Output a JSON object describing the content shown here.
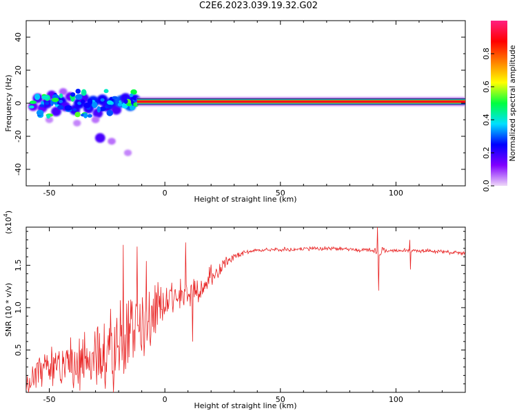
{
  "title": "C2E6.2023.039.19.32.G02",
  "chart_data": [
    {
      "type": "heatmap",
      "xlabel": "Height of straight line (km)",
      "ylabel": "Frequency (Hz)",
      "xlim": [
        -60,
        130
      ],
      "ylim": [
        -50,
        50
      ],
      "x_ticks": [
        "-50",
        "0",
        "50",
        "100"
      ],
      "y_ticks": [
        "-40",
        "-20",
        "0",
        "20",
        "40"
      ],
      "colorbar": {
        "label": "Normalized spectral amplitude",
        "range": [
          0,
          1
        ],
        "ticks": [
          "0.0",
          "0.2",
          "0.4",
          "0.6",
          "0.8"
        ],
        "colors": [
          "#eed8f8",
          "#8000ff",
          "#0000ff",
          "#00e0ff",
          "#00ff40",
          "#ffff00",
          "#ff8000",
          "#ff0000",
          "#ff2080"
        ]
      },
      "signal_band": {
        "x": [
          -12,
          130
        ],
        "freq": [
          0,
          2
        ]
      },
      "blobs": [
        {
          "x": -57,
          "f": -2,
          "v": 0.25
        },
        {
          "x": -55,
          "f": 3,
          "v": 0.3
        },
        {
          "x": -53,
          "f": -3,
          "v": 0.25
        },
        {
          "x": -51,
          "f": 0,
          "v": 0.35
        },
        {
          "x": -49,
          "f": 5,
          "v": 0.25
        },
        {
          "x": -47,
          "f": -5,
          "v": 0.3
        },
        {
          "x": -45,
          "f": 1,
          "v": 0.4
        },
        {
          "x": -43,
          "f": -2,
          "v": 0.3
        },
        {
          "x": -41,
          "f": 4,
          "v": 0.25
        },
        {
          "x": -39,
          "f": -4,
          "v": 0.35
        },
        {
          "x": -37,
          "f": 0,
          "v": 0.4
        },
        {
          "x": -35,
          "f": 3,
          "v": 0.3
        },
        {
          "x": -33,
          "f": -3,
          "v": 0.35
        },
        {
          "x": -31,
          "f": 1,
          "v": 0.45
        },
        {
          "x": -29,
          "f": -6,
          "v": 0.3
        },
        {
          "x": -27,
          "f": 2,
          "v": 0.4
        },
        {
          "x": -25,
          "f": -2,
          "v": 0.35
        },
        {
          "x": -23,
          "f": 0,
          "v": 0.45
        },
        {
          "x": -21,
          "f": -4,
          "v": 0.3
        },
        {
          "x": -19,
          "f": 1,
          "v": 0.5
        },
        {
          "x": -17,
          "f": 3,
          "v": 0.35
        },
        {
          "x": -15,
          "f": -1,
          "v": 0.5
        },
        {
          "x": -13,
          "f": 2,
          "v": 0.4
        },
        {
          "x": -28,
          "f": -21,
          "v": 0.3
        },
        {
          "x": -23,
          "f": -23,
          "v": 0.1
        },
        {
          "x": -16,
          "f": -30,
          "v": 0.08
        },
        {
          "x": -38,
          "f": -12,
          "v": 0.08
        },
        {
          "x": -30,
          "f": -10,
          "v": 0.1
        },
        {
          "x": -44,
          "f": 7,
          "v": 0.12
        },
        {
          "x": -50,
          "f": -10,
          "v": 0.08
        }
      ]
    },
    {
      "type": "line",
      "xlabel": "Height of straight line (km)",
      "ylabel": "SNR (10 * v/v)",
      "y_multiplier": "(x10",
      "y_multiplier_exp": "4",
      "xlim": [
        -60,
        130
      ],
      "ylim": [
        0.0,
        1.95
      ],
      "x_ticks": [
        "-50",
        "0",
        "50",
        "100"
      ],
      "y_ticks": [
        "0.5",
        "1.0",
        "1.5"
      ],
      "color": "#e82020",
      "x": [
        -60,
        -55,
        -50,
        -45,
        -40,
        -35,
        -30,
        -25,
        -20,
        -15,
        -10,
        -5,
        0,
        5,
        10,
        15,
        20,
        25,
        30,
        35,
        40,
        50,
        60,
        70,
        80,
        85,
        90,
        92,
        95,
        100,
        105,
        110,
        120,
        130
      ],
      "y": [
        0.15,
        0.22,
        0.28,
        0.3,
        0.32,
        0.35,
        0.4,
        0.48,
        0.6,
        0.7,
        0.85,
        1.0,
        1.08,
        1.15,
        1.2,
        1.2,
        1.35,
        1.5,
        1.6,
        1.66,
        1.68,
        1.69,
        1.69,
        1.7,
        1.69,
        1.68,
        1.68,
        1.65,
        1.67,
        1.67,
        1.67,
        1.67,
        1.66,
        1.64
      ],
      "noise_amp": [
        0.15,
        0.2,
        0.22,
        0.25,
        0.28,
        0.3,
        0.35,
        0.4,
        0.45,
        0.45,
        0.4,
        0.3,
        0.2,
        0.18,
        0.18,
        0.15,
        0.12,
        0.08,
        0.04,
        0.02,
        0.02,
        0.02,
        0.02,
        0.02,
        0.02,
        0.02,
        0.03,
        0.05,
        0.03,
        0.02,
        0.02,
        0.02,
        0.02,
        0.02
      ],
      "spikes": [
        {
          "x": -18,
          "y": 1.74
        },
        {
          "x": -12,
          "y": 1.72
        },
        {
          "x": -8,
          "y": 1.55
        },
        {
          "x": 9,
          "y": 1.77
        },
        {
          "x": 12,
          "y": 0.6
        },
        {
          "x": 92,
          "y": 1.95
        },
        {
          "x": 92.5,
          "y": 1.2
        },
        {
          "x": 106,
          "y": 1.8
        },
        {
          "x": 106.3,
          "y": 1.45
        }
      ]
    }
  ]
}
